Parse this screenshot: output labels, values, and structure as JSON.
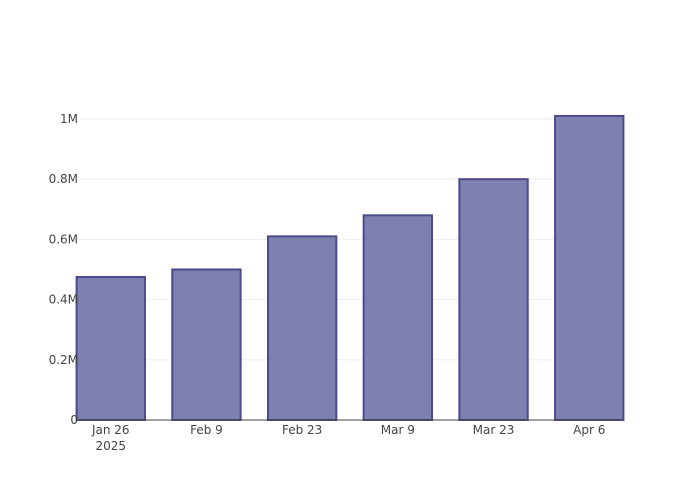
{
  "chart_data": {
    "type": "bar",
    "categories": [
      "2025-01-26",
      "2025-02-09",
      "2025-02-23",
      "2025-03-09",
      "2025-03-23",
      "2025-04-06"
    ],
    "values": [
      475000,
      500000,
      610000,
      680000,
      800000,
      1010000
    ],
    "x_tick_labels": [
      "Jan 26",
      "Feb 9",
      "Feb 23",
      "Mar 9",
      "Mar 23",
      "Apr 6"
    ],
    "x_tick_sublabels": [
      "2025",
      "",
      "",
      "",
      "",
      ""
    ],
    "y_ticks": [
      0,
      200000,
      400000,
      600000,
      800000,
      1000000
    ],
    "y_tick_labels": [
      "0",
      "0.2M",
      "0.4M",
      "0.6M",
      "0.8M",
      "1M"
    ],
    "ylim": [
      0,
      1063000
    ],
    "grid": true,
    "title": "",
    "xlabel": "",
    "ylabel": "",
    "colors": {
      "bar_fill": "#7f7fb0",
      "bar_stroke": "#4b4b8c"
    }
  }
}
